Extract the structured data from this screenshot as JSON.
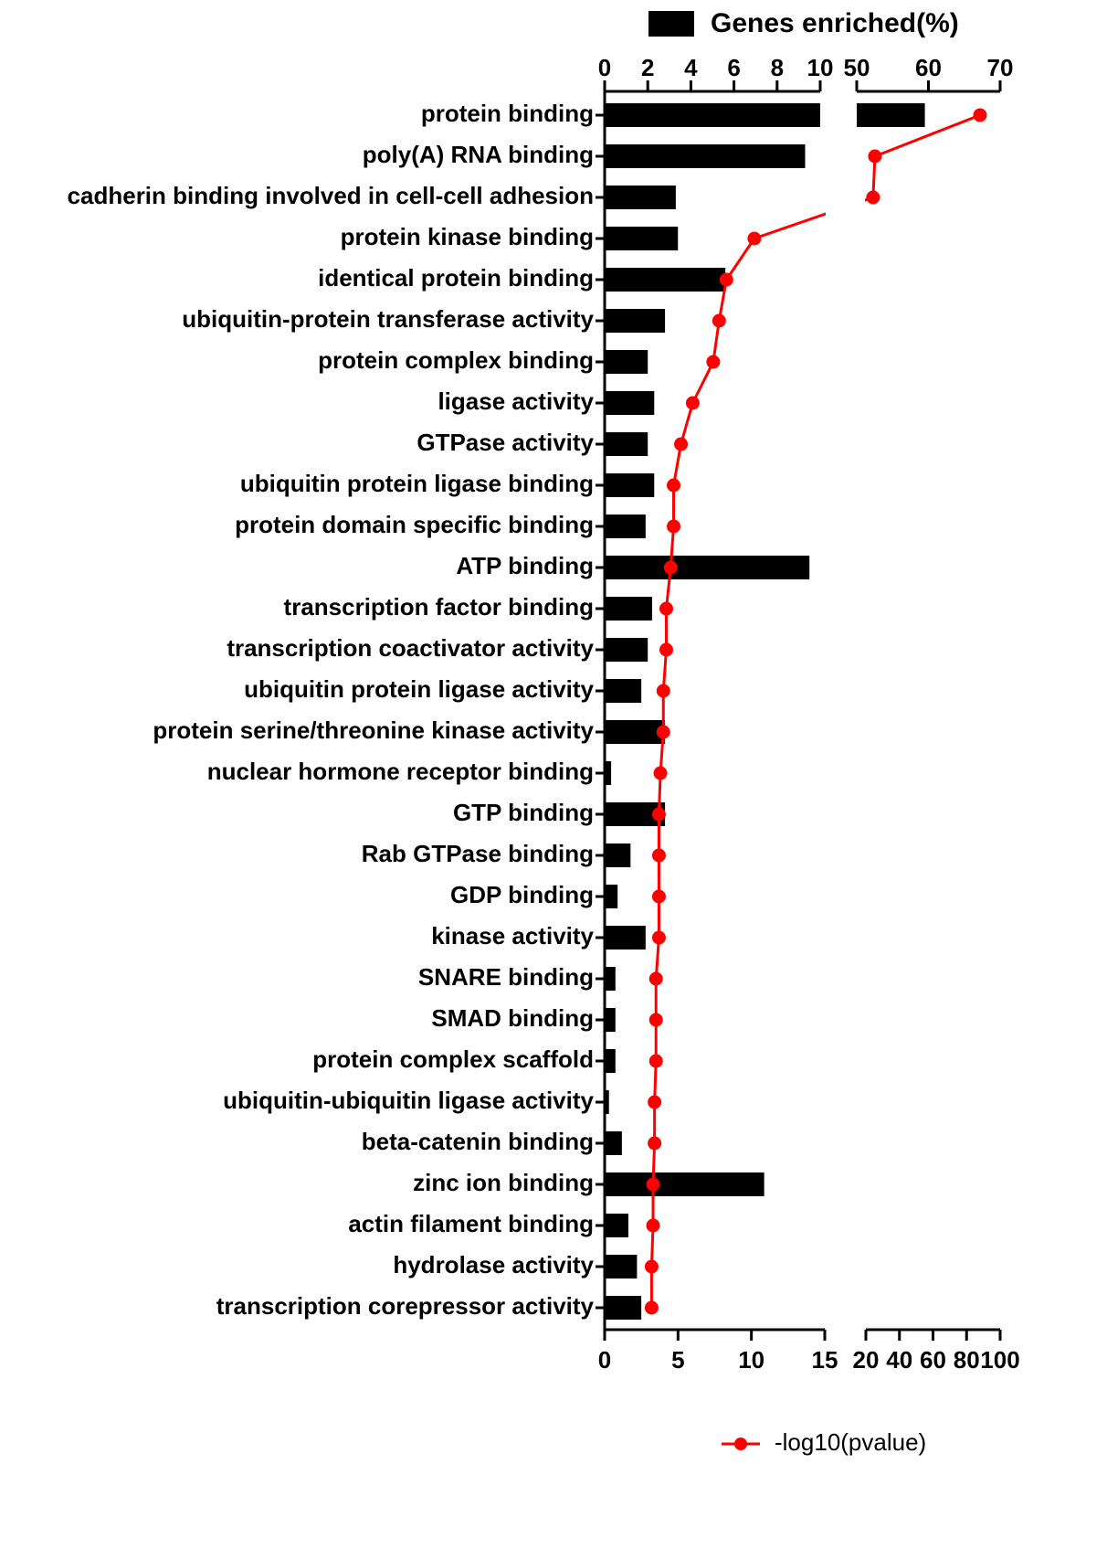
{
  "chart_data": {
    "type": "bar_line",
    "categories": [
      "protein binding",
      "poly(A) RNA binding",
      "cadherin binding involved in cell-cell adhesion",
      "protein kinase binding",
      "identical protein binding",
      "ubiquitin-protein transferase activity",
      "protein complex binding",
      "ligase activity",
      "GTPase activity",
      "ubiquitin protein ligase binding",
      "protein domain specific binding",
      "ATP binding",
      "transcription factor binding",
      "transcription coactivator activity",
      "ubiquitin protein ligase activity",
      "protein serine/threonine kinase activity",
      "nuclear hormone receptor binding",
      "GTP binding",
      "Rab GTPase binding",
      "GDP binding",
      "kinase activity",
      "SNARE binding",
      "SMAD binding",
      "protein complex scaffold",
      "ubiquitin-ubiquitin ligase activity",
      "beta-catenin binding",
      "zinc ion binding",
      "actin filament binding",
      "hydrolase activity",
      "transcription corepressor activity"
    ],
    "series": [
      {
        "name": "Genes enriched(%)",
        "color": "#000000",
        "axis": "top",
        "values": [
          59.5,
          9.3,
          3.3,
          3.4,
          5.6,
          2.8,
          2.0,
          2.3,
          2.0,
          2.3,
          1.9,
          9.5,
          2.2,
          2.0,
          1.7,
          2.8,
          0.3,
          2.8,
          1.2,
          0.6,
          1.9,
          0.5,
          0.5,
          0.5,
          0.2,
          0.8,
          7.4,
          1.1,
          1.5,
          1.7
        ]
      },
      {
        "name": "-log10(pvalue)",
        "color": "#ff0000",
        "axis": "bottom",
        "values": [
          88,
          25.4,
          24.3,
          10.2,
          8.3,
          7.8,
          7.4,
          6.0,
          5.2,
          4.7,
          4.7,
          4.5,
          4.2,
          4.2,
          4.0,
          4.0,
          3.8,
          3.7,
          3.7,
          3.7,
          3.7,
          3.5,
          3.5,
          3.5,
          3.4,
          3.4,
          3.3,
          3.3,
          3.2,
          3.2
        ]
      }
    ],
    "top_axis_segments": [
      {
        "xlim": [
          0,
          10
        ],
        "xticks": [
          0,
          2,
          4,
          6,
          8,
          10
        ]
      },
      {
        "xlim": [
          50,
          70
        ],
        "xticks": [
          50,
          60,
          70
        ]
      }
    ],
    "bottom_axis_segments": [
      {
        "xlim": [
          0,
          15
        ],
        "xticks": [
          0,
          5,
          10,
          15
        ]
      },
      {
        "xlim": [
          20,
          100
        ],
        "xticks": [
          20,
          40,
          60,
          80,
          100
        ]
      }
    ]
  }
}
